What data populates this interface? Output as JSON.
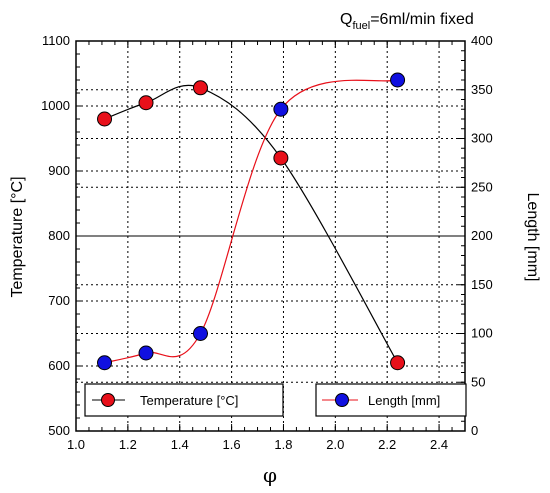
{
  "chart_data": {
    "type": "line",
    "annotation": {
      "prefix": "Q",
      "subscript": "fuel",
      "suffix": "=6ml/min fixed"
    },
    "xlabel": "φ",
    "ylabel_left": "Temperature [°C]",
    "ylabel_right": "Length [mm]",
    "xlim": [
      1.0,
      2.5
    ],
    "ylim_left": [
      500,
      1100
    ],
    "ylim_right": [
      0,
      400
    ],
    "x_ticks": [
      "1.0",
      "1.2",
      "1.4",
      "1.6",
      "1.8",
      "2.0",
      "2.2",
      "2.4"
    ],
    "y_left_ticks": [
      "500",
      "600",
      "700",
      "800",
      "900",
      "1000",
      "1100"
    ],
    "y_right_ticks": [
      "0",
      "50",
      "100",
      "150",
      "200",
      "250",
      "300",
      "350",
      "400"
    ],
    "grid": true,
    "series": [
      {
        "name": "Temperature  [°C]",
        "axis": "left",
        "marker_color": "#e8101a",
        "line_color": "#000000",
        "x": [
          1.11,
          1.27,
          1.48,
          1.79,
          2.24
        ],
        "y": [
          980,
          1005,
          1028,
          920,
          605
        ]
      },
      {
        "name": "Length [mm]",
        "axis": "right",
        "marker_color": "#1010e0",
        "line_color": "#e8101a",
        "x": [
          1.11,
          1.27,
          1.48,
          1.79,
          2.24
        ],
        "y": [
          70,
          80,
          100,
          330,
          360
        ]
      }
    ]
  }
}
